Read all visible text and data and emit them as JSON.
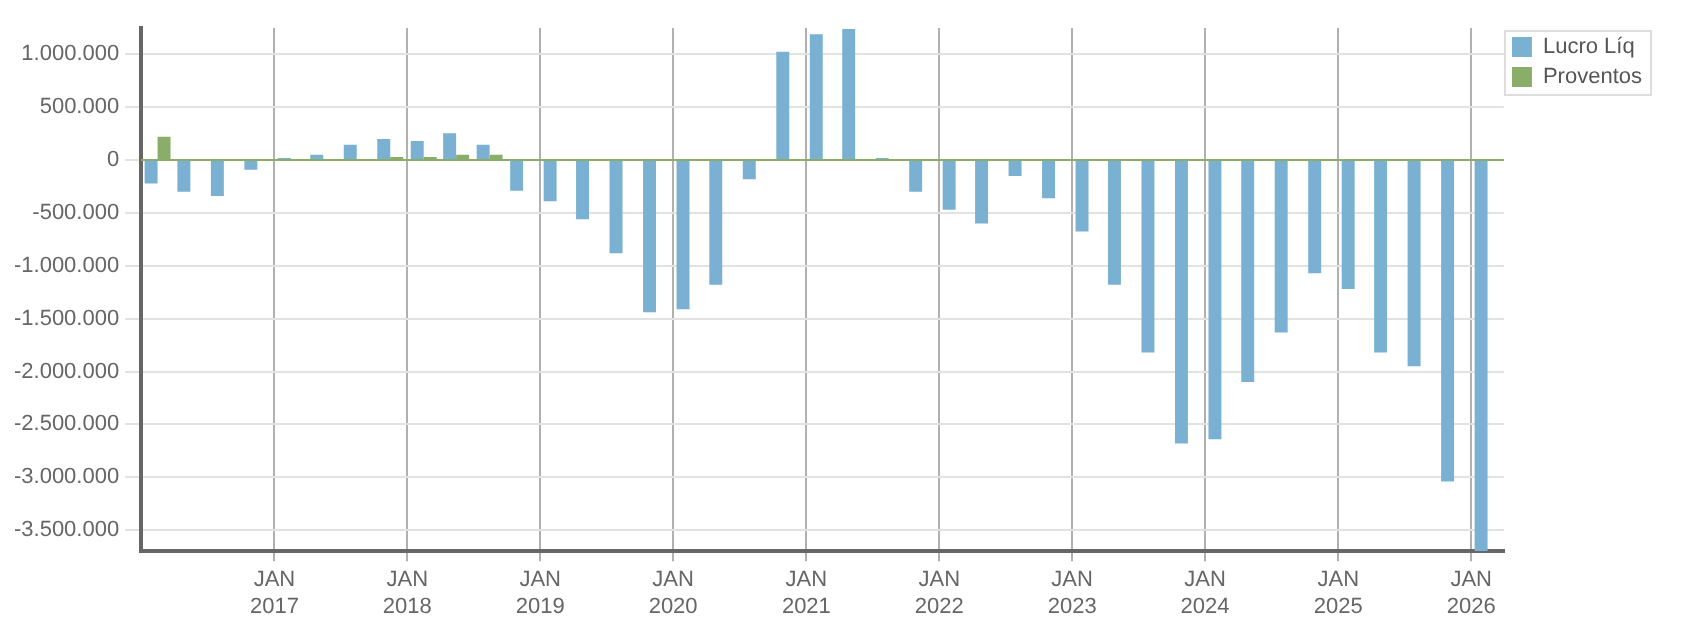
{
  "chart_data": {
    "type": "bar",
    "x": [
      "2016-02-15",
      "2016-05-15",
      "2016-08-15",
      "2016-11-15",
      "2017-02-15",
      "2017-05-15",
      "2017-08-15",
      "2017-11-15",
      "2018-02-15",
      "2018-05-15",
      "2018-08-15",
      "2018-11-15",
      "2019-02-15",
      "2019-05-15",
      "2019-08-15",
      "2019-11-15",
      "2020-02-15",
      "2020-05-15",
      "2020-08-15",
      "2020-11-15",
      "2021-02-15",
      "2021-05-15",
      "2021-08-15",
      "2021-11-15",
      "2022-02-15",
      "2022-05-15",
      "2022-08-15",
      "2022-11-15",
      "2023-02-15",
      "2023-05-15",
      "2023-08-15",
      "2023-11-15",
      "2024-02-15",
      "2024-05-15",
      "2024-08-15",
      "2024-11-15",
      "2025-02-15",
      "2025-05-15",
      "2025-08-15",
      "2025-11-15",
      "2026-02-15"
    ],
    "series": [
      {
        "name": "Lucro Líq",
        "color": "#7ab1d3",
        "values": [
          -220000,
          -300000,
          -340000,
          -90000,
          20000,
          50000,
          145000,
          200000,
          180000,
          255000,
          145000,
          -290000,
          -390000,
          -560000,
          -880000,
          -1440000,
          -1410000,
          -1180000,
          -180000,
          1025000,
          1190000,
          1240000,
          20000,
          -300000,
          -470000,
          -600000,
          -150000,
          -360000,
          -675000,
          -1180000,
          -1820000,
          -2680000,
          -2640000,
          -2100000,
          -1630000,
          -1070000,
          -1220000,
          -1820000,
          -1950000,
          -3040000,
          -3700000
        ]
      },
      {
        "name": "Proventos",
        "color": "#8aae6a",
        "values": [
          220000,
          0,
          0,
          0,
          0,
          0,
          0,
          30000,
          30000,
          50000,
          50000,
          10000,
          0,
          0,
          0,
          0,
          0,
          0,
          0,
          0,
          0,
          0,
          0,
          0,
          0,
          0,
          0,
          0,
          0,
          0,
          0,
          0,
          0,
          0,
          0,
          0,
          0,
          0,
          0,
          0,
          0
        ]
      }
    ],
    "xlim": [
      "2016-01-01",
      "2026-04-01"
    ],
    "xticks": [
      {
        "value": "2017-01-01",
        "label": "JAN\n2017"
      },
      {
        "value": "2018-01-01",
        "label": "JAN\n2018"
      },
      {
        "value": "2019-01-01",
        "label": "JAN\n2019"
      },
      {
        "value": "2020-01-01",
        "label": "JAN\n2020"
      },
      {
        "value": "2021-01-01",
        "label": "JAN\n2021"
      },
      {
        "value": "2022-01-01",
        "label": "JAN\n2022"
      },
      {
        "value": "2023-01-01",
        "label": "JAN\n2023"
      },
      {
        "value": "2024-01-01",
        "label": "JAN\n2024"
      },
      {
        "value": "2025-01-01",
        "label": "JAN\n2025"
      },
      {
        "value": "2026-01-01",
        "label": "JAN\n2026"
      }
    ],
    "ylim": [
      -3700000,
      1250000
    ],
    "yticks": [
      {
        "value": 1000000,
        "label": "1.000.000"
      },
      {
        "value": 500000,
        "label": "500.000"
      },
      {
        "value": 0,
        "label": "0"
      },
      {
        "value": -500000,
        "label": "-500.000"
      },
      {
        "value": -1000000,
        "label": "-1.000.000"
      },
      {
        "value": -1500000,
        "label": "-1.500.000"
      },
      {
        "value": -2000000,
        "label": "-2.000.000"
      },
      {
        "value": -2500000,
        "label": "-2.500.000"
      },
      {
        "value": -3000000,
        "label": "-3.000.000"
      },
      {
        "value": -3500000,
        "label": "-3.500.000"
      }
    ],
    "ref_lines": [
      {
        "axis": "y",
        "value": 0,
        "color": "#8aae6a"
      }
    ],
    "grid": true,
    "legend": "top right"
  }
}
